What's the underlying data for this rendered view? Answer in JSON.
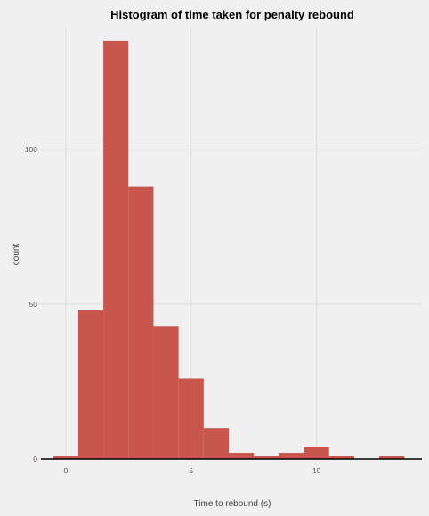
{
  "chart_data": {
    "type": "bar",
    "title": "Histogram of time taken for penalty rebound",
    "xlabel": "Time to rebound (s)",
    "ylabel": "count",
    "bin_width": 1,
    "bins": [
      {
        "x0": -0.5,
        "x1": 0.5,
        "count": 1
      },
      {
        "x0": 0.5,
        "x1": 1.5,
        "count": 48
      },
      {
        "x0": 1.5,
        "x1": 2.5,
        "count": 135
      },
      {
        "x0": 2.5,
        "x1": 3.5,
        "count": 88
      },
      {
        "x0": 3.5,
        "x1": 4.5,
        "count": 43
      },
      {
        "x0": 4.5,
        "x1": 5.5,
        "count": 26
      },
      {
        "x0": 5.5,
        "x1": 6.5,
        "count": 10
      },
      {
        "x0": 6.5,
        "x1": 7.5,
        "count": 2
      },
      {
        "x0": 7.5,
        "x1": 8.5,
        "count": 1
      },
      {
        "x0": 8.5,
        "x1": 9.5,
        "count": 2
      },
      {
        "x0": 9.5,
        "x1": 10.5,
        "count": 4
      },
      {
        "x0": 10.5,
        "x1": 11.5,
        "count": 1
      },
      {
        "x0": 11.5,
        "x1": 12.5,
        "count": 0
      },
      {
        "x0": 12.5,
        "x1": 13.5,
        "count": 1
      }
    ],
    "xlim": [
      -1.2,
      14.2
    ],
    "ylim": [
      0,
      139
    ],
    "x_ticks": [
      0,
      5,
      10
    ],
    "x_tick_labels": [
      "0",
      "5",
      "10"
    ],
    "y_ticks": [
      0,
      50,
      100
    ],
    "y_tick_labels": [
      "0",
      "50",
      "100"
    ],
    "grid": true,
    "bar_color": "#c9564d",
    "background_color": "#f0f0f0",
    "grid_color": "#dcdcdc"
  }
}
